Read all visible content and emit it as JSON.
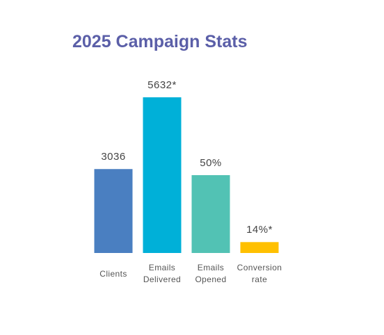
{
  "chart_data": {
    "type": "bar",
    "title": "2025 Campaign Stats",
    "categories": [
      "Clients",
      "Emails Delivered",
      "Emails Opened",
      "Conversion rate"
    ],
    "values": [
      3036,
      5632,
      50,
      14
    ],
    "value_labels": [
      "3036",
      "5632*",
      "50%",
      "14%*"
    ],
    "colors": [
      "#4a7fc1",
      "#00b0d8",
      "#52c2b4",
      "#ffc000"
    ],
    "percent_base": "previous"
  }
}
